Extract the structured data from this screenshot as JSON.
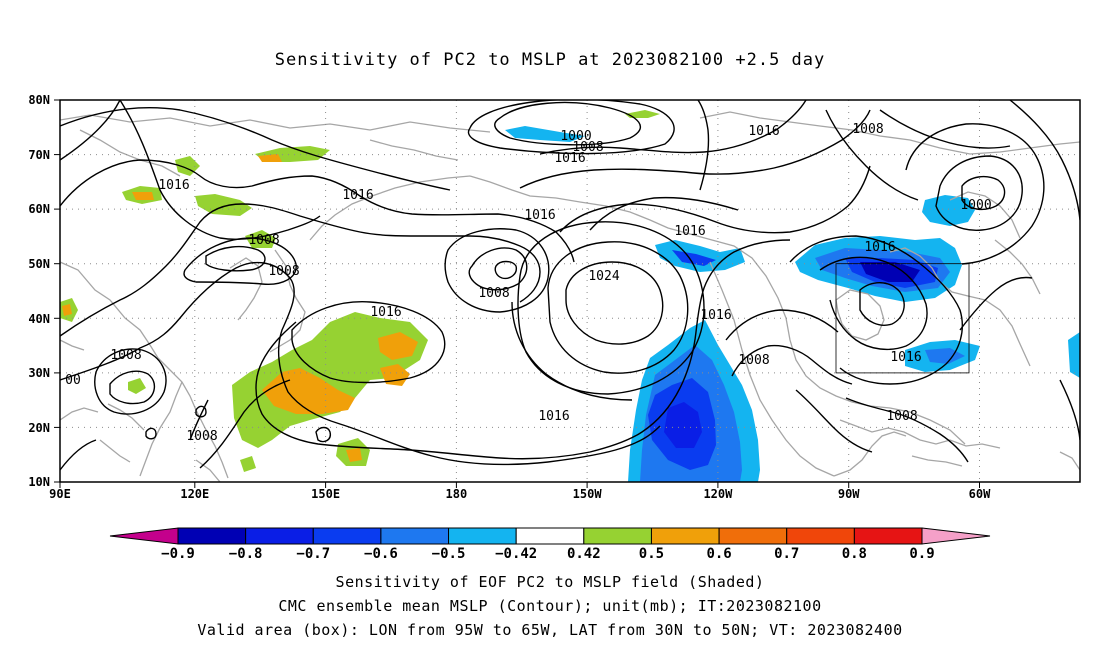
{
  "title": "Sensitivity of PC2 to MSLP at 2023082100 +2.5 day",
  "lat_labels": [
    "80N",
    "70N",
    "60N",
    "50N",
    "40N",
    "30N",
    "20N",
    "10N"
  ],
  "lon_labels": [
    "90E",
    "120E",
    "150E",
    "180",
    "150W",
    "120W",
    "90W",
    "60W"
  ],
  "contour_labels": {
    "c1000_a": "1000",
    "c1008_a": "1008",
    "c1016_a": "1016",
    "c1016_b": "1016",
    "c1008_b": "1008",
    "c1016_c": "1016",
    "c1016_d": "1016",
    "c1016_e": "1016",
    "c1008_c": "1008",
    "c1000_b": "1000",
    "c1016_f": "1016",
    "c1008_d": "1008",
    "c1008_e": "1008",
    "c1024": "1024",
    "c1016_g": "1016",
    "c1016_h": "1016",
    "c1016_i": "1016",
    "c1008_f": "1008",
    "c1016_j": "1016",
    "c1008_g": "1008",
    "c1008_h": "1008",
    "c00": "00",
    "c1008_i": "1008"
  },
  "colorbar": {
    "labels": [
      "-0.9",
      "-0.8",
      "-0.7",
      "-0.6",
      "-0.5",
      "-0.42",
      "0.42",
      "0.5",
      "0.6",
      "0.7",
      "0.8",
      "0.9"
    ],
    "colors": [
      "#c4008c",
      "#0000b4",
      "#0a1ee6",
      "#0a3cf0",
      "#1e78f0",
      "#14b4f0",
      "#ffffff",
      "#96d232",
      "#f0a00a",
      "#f06e0a",
      "#f0460a",
      "#e61414",
      "#f5a0c8"
    ]
  },
  "footer": {
    "line1": "Sensitivity of EOF PC2 to MSLP field (Shaded)",
    "line2": "CMC ensemble mean MSLP (Contour); unit(mb); IT:2023082100",
    "line3": "Valid area (box): LON from 95W to 65W, LAT from 30N to 50N; VT: 2023082400"
  }
}
